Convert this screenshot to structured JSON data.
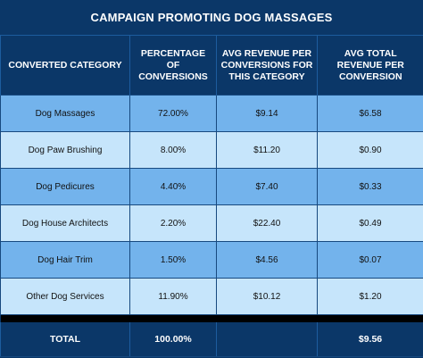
{
  "title": "CAMPAIGN PROMOTING DOG MASSAGES",
  "headers": [
    "CONVERTED CATEGORY",
    "PERCENTAGE OF CONVERSIONS",
    "AVG REVENUE PER CONVERSIONS FOR THIS CATEGORY",
    "AVG TOTAL REVENUE PER CONVERSION"
  ],
  "rows": [
    [
      "Dog Massages",
      "72.00%",
      "$9.14",
      "$6.58"
    ],
    [
      "Dog Paw Brushing",
      "8.00%",
      "$11.20",
      "$0.90"
    ],
    [
      "Dog Pedicures",
      "4.40%",
      "$7.40",
      "$0.33"
    ],
    [
      "Dog House Architects",
      "2.20%",
      "$22.40",
      "$0.49"
    ],
    [
      "Dog Hair Trim",
      "1.50%",
      "$4.56",
      "$0.07"
    ],
    [
      "Other Dog Services",
      "11.90%",
      "$10.12",
      "$1.20"
    ]
  ],
  "total": [
    "TOTAL",
    "100.00%",
    "",
    "$9.56"
  ],
  "colors": {
    "header_bg": "#0b3768",
    "row_dark": "#73b3ec",
    "row_light": "#c6e5fb"
  }
}
